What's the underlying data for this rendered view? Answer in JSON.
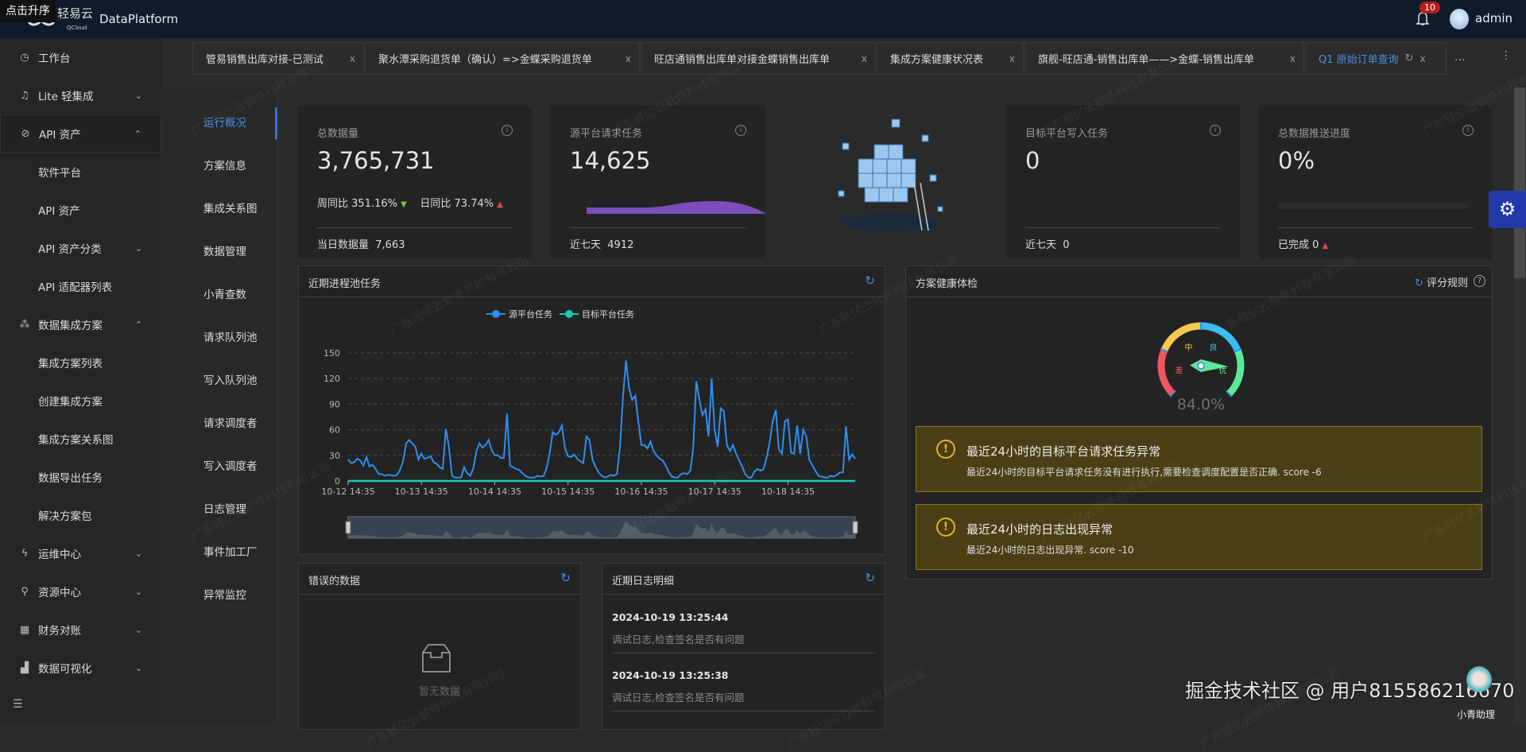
{
  "tooltip": "点击升序",
  "header": {
    "logo_text": "轻易云",
    "logo_sub": "QCloud",
    "app_title": "DataPlatform",
    "notification_count": "10",
    "user": "admin"
  },
  "sidebar": {
    "items": [
      {
        "label": "工作台",
        "icon": "clock-icon",
        "type": "top"
      },
      {
        "label": "Lite 轻集成",
        "icon": "bell-icon",
        "type": "top",
        "chevron": "down"
      },
      {
        "label": "API 资产",
        "icon": "compass-icon",
        "type": "top",
        "chevron": "up"
      },
      {
        "label": "软件平台",
        "type": "sub"
      },
      {
        "label": "API 资产",
        "type": "sub"
      },
      {
        "label": "API 资产分类",
        "type": "sub",
        "chevron": "down"
      },
      {
        "label": "API 适配器列表",
        "type": "sub"
      },
      {
        "label": "数据集成方案",
        "icon": "network-icon",
        "type": "top",
        "chevron": "up"
      },
      {
        "label": "集成方案列表",
        "type": "sub"
      },
      {
        "label": "创建集成方案",
        "type": "sub"
      },
      {
        "label": "集成方案关系图",
        "type": "sub"
      },
      {
        "label": "数据导出任务",
        "type": "sub"
      },
      {
        "label": "解决方案包",
        "type": "sub"
      },
      {
        "label": "运维中心",
        "icon": "bolt-icon",
        "type": "top",
        "chevron": "down"
      },
      {
        "label": "资源中心",
        "icon": "sitemap-icon",
        "type": "top",
        "chevron": "down"
      },
      {
        "label": "财务对账",
        "icon": "calculator-icon",
        "type": "top",
        "chevron": "down"
      },
      {
        "label": "数据可视化",
        "icon": "chart-icon",
        "type": "top",
        "chevron": "down"
      }
    ]
  },
  "tabs": [
    {
      "label": "管易销售出库对接-已测试"
    },
    {
      "label": "聚水潭采购退货单（确认）=>金蝶采购退货单"
    },
    {
      "label": "旺店通销售出库单对接金蝶销售出库单"
    },
    {
      "label": "集成方案健康状况表"
    },
    {
      "label": "旗舰-旺店通-销售出库单——>金蝶-销售出库单"
    },
    {
      "label": "Q1 原始订单查询",
      "active": true
    }
  ],
  "tabs_more": "...",
  "submenu": [
    "运行概况",
    "方案信息",
    "集成关系图",
    "数据管理",
    "小青查数",
    "请求队列池",
    "写入队列池",
    "请求调度者",
    "写入调度者",
    "日志管理",
    "事件加工厂",
    "异常监控"
  ],
  "cards": {
    "total": {
      "title": "总数据量",
      "value": "3,765,731",
      "wow_label": "周同比",
      "wow": "351.16%",
      "dod_label": "日同比",
      "dod": "73.74%",
      "footer_label": "当日数据量",
      "footer_value": "7,663"
    },
    "source": {
      "title": "源平台请求任务",
      "value": "14,625",
      "footer_label": "近七天",
      "footer_value": "4912"
    },
    "target": {
      "title": "目标平台写入任务",
      "value": "0",
      "footer_label": "近七天",
      "footer_value": "0"
    },
    "progress": {
      "title": "总数据推送进度",
      "value": "0%",
      "progress_fraction": 0,
      "footer_label": "已完成",
      "footer_value": "0"
    }
  },
  "colors": {
    "accent": "#4a8fe0",
    "source_series": "#2f8ff0",
    "target_series": "#1fc8b8",
    "sparkline": "#7c4dbb",
    "up": "#e04848",
    "down": "#6ccf3a",
    "alert_bg": "#4a3f14",
    "alert_icon": "#e8b22a"
  },
  "chart_panel": {
    "title": "近期进程池任务"
  },
  "chart_data": {
    "type": "line",
    "x_ticks": [
      "10-12 14:35",
      "10-13 14:35",
      "10-14 14:35",
      "10-15 14:35",
      "10-16 14:35",
      "10-17 14:35",
      "10-18 14:35"
    ],
    "ylim": [
      0,
      150
    ],
    "y_ticks": [
      0,
      30,
      60,
      90,
      120,
      150
    ],
    "grid": true,
    "legend_position": "top-center",
    "x_interval": "hourly",
    "series": [
      {
        "name": "源平台任务",
        "values": [
          25,
          21,
          22,
          26,
          24,
          18,
          28,
          17,
          19,
          14,
          8,
          8,
          6,
          7,
          7,
          6,
          7,
          13,
          23,
          44,
          48,
          44,
          40,
          25,
          32,
          26,
          27,
          29,
          22,
          20,
          16,
          14,
          61,
          40,
          6,
          4,
          4,
          4,
          16,
          9,
          6,
          15,
          35,
          44,
          39,
          42,
          48,
          36,
          30,
          30,
          27,
          27,
          79,
          18,
          16,
          14,
          13,
          9,
          6,
          4,
          4,
          4,
          6,
          5,
          6,
          15,
          33,
          57,
          54,
          57,
          65,
          38,
          29,
          28,
          31,
          26,
          23,
          21,
          52,
          48,
          25,
          17,
          10,
          6,
          4,
          5,
          7,
          6,
          8,
          40,
          100,
          141,
          108,
          95,
          100,
          70,
          42,
          42,
          38,
          46,
          35,
          30,
          26,
          24,
          18,
          10,
          5,
          4,
          4,
          8,
          9,
          8,
          12,
          40,
          117,
          95,
          77,
          84,
          52,
          120,
          60,
          40,
          85,
          82,
          42,
          35,
          42,
          32,
          24,
          17,
          8,
          4,
          4,
          11,
          14,
          12,
          14,
          27,
          45,
          70,
          83,
          37,
          32,
          70,
          72,
          33,
          32,
          65,
          32,
          60,
          52,
          25,
          18,
          12,
          6,
          5,
          4,
          4,
          6,
          5,
          7,
          10,
          10,
          64,
          25,
          31,
          26
        ]
      },
      {
        "name": "目标平台任务",
        "values": "all-zero"
      }
    ]
  },
  "health": {
    "title": "方案健康体检",
    "rules_label": "评分规则",
    "gauge_value": 84.0,
    "gauge_text": "84.0%",
    "gauge_labels": [
      "差",
      "中",
      "良",
      "优"
    ],
    "alerts": [
      {
        "title": "最近24小时的目标平台请求任务异常",
        "desc": "最近24小时的目标平台请求任务没有进行执行,需要检查调度配置是否正确. score -6"
      },
      {
        "title": "最近24小时的日志出现异常",
        "desc": "最近24小时的日志出现异常. score -10"
      }
    ]
  },
  "errors_panel": {
    "title": "错误的数据",
    "empty": "暂无数据"
  },
  "logs_panel": {
    "title": "近期日志明细",
    "items": [
      {
        "time": "2024-10-19 13:25:44",
        "msg": "调试日志,检查签名是否有问题"
      },
      {
        "time": "2024-10-19 13:25:38",
        "msg": "调试日志,检查签名是否有问题"
      }
    ]
  },
  "watermark": "广东轻亿云软件科技有限公司",
  "footer_watermark": "掘金技术社区 @ 用户815586216670",
  "helper_label": "小青助理"
}
